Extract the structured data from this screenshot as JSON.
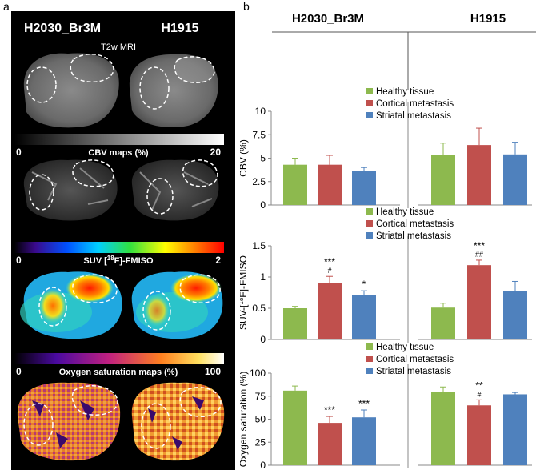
{
  "panel_a": {
    "letter": "a",
    "col1_title": "H2030_Br3M",
    "col2_title": "H1915",
    "t2w_label": "T2w MRI",
    "cbv": {
      "label": "CBV maps (%)",
      "min": "0",
      "max": "20"
    },
    "suv": {
      "label_pre": "SUV [",
      "label_sup": "18",
      "label_post": "F]-FMISO",
      "min": "0",
      "max": "2"
    },
    "oxy": {
      "label": "Oxygen saturation maps (%)",
      "min": "0",
      "max": "100"
    }
  },
  "panel_b": {
    "letter": "b",
    "col1_title": "H2030_Br3M",
    "col2_title": "H1915"
  },
  "colors": {
    "healthy": "#8DB94E",
    "cortical": "#C0504D",
    "striatal": "#4F81BD"
  },
  "chart_data": [
    {
      "type": "bar",
      "ylabel": "CBV (%)",
      "ylim": [
        0,
        10
      ],
      "yticks": [
        "0",
        "2.5",
        "5",
        "7.5",
        "10"
      ],
      "legend": [
        "Healthy tissue",
        "Cortical metastasis",
        "Striatal metastasis"
      ],
      "groups": [
        {
          "name": "H2030_Br3M",
          "values": [
            4.3,
            4.3,
            3.6
          ],
          "errors": [
            0.7,
            1.0,
            0.4
          ],
          "annotations": [
            "",
            "",
            ""
          ]
        },
        {
          "name": "H1915",
          "values": [
            5.3,
            6.4,
            5.4
          ],
          "errors": [
            1.3,
            1.8,
            1.3
          ],
          "annotations": [
            "",
            "",
            ""
          ]
        }
      ]
    },
    {
      "type": "bar",
      "ylabel_pre": "SUV-[",
      "ylabel_sup": "18",
      "ylabel_post": "F]-FMISO",
      "ylim": [
        0,
        1.5
      ],
      "yticks": [
        "0",
        "0.5",
        "1",
        "1.5"
      ],
      "legend": [
        "Healthy tissue",
        "Cortical metastasis",
        "Striatal metastasis"
      ],
      "groups": [
        {
          "name": "H2030_Br3M",
          "values": [
            0.5,
            0.9,
            0.71
          ],
          "errors": [
            0.03,
            0.11,
            0.07
          ],
          "annotations": [
            "",
            "***\n#",
            "*"
          ]
        },
        {
          "name": "H1915",
          "values": [
            0.51,
            1.19,
            0.77
          ],
          "errors": [
            0.07,
            0.08,
            0.16
          ],
          "annotations": [
            "",
            "***\n##",
            ""
          ]
        }
      ]
    },
    {
      "type": "bar",
      "ylabel": "Oxygen saturation (%)",
      "ylim": [
        0,
        100
      ],
      "yticks": [
        "0",
        "25",
        "50",
        "75",
        "100"
      ],
      "legend": [
        "Healthy tissue",
        "Cortical metastasis",
        "Striatal metastasis"
      ],
      "groups": [
        {
          "name": "H2030_Br3M",
          "values": [
            81,
            46,
            52
          ],
          "errors": [
            5,
            7,
            8
          ],
          "annotations": [
            "",
            "***",
            "***"
          ]
        },
        {
          "name": "H1915",
          "values": [
            80,
            65,
            77
          ],
          "errors": [
            5,
            6,
            2
          ],
          "annotations": [
            "",
            "**\n#",
            ""
          ]
        }
      ]
    }
  ]
}
